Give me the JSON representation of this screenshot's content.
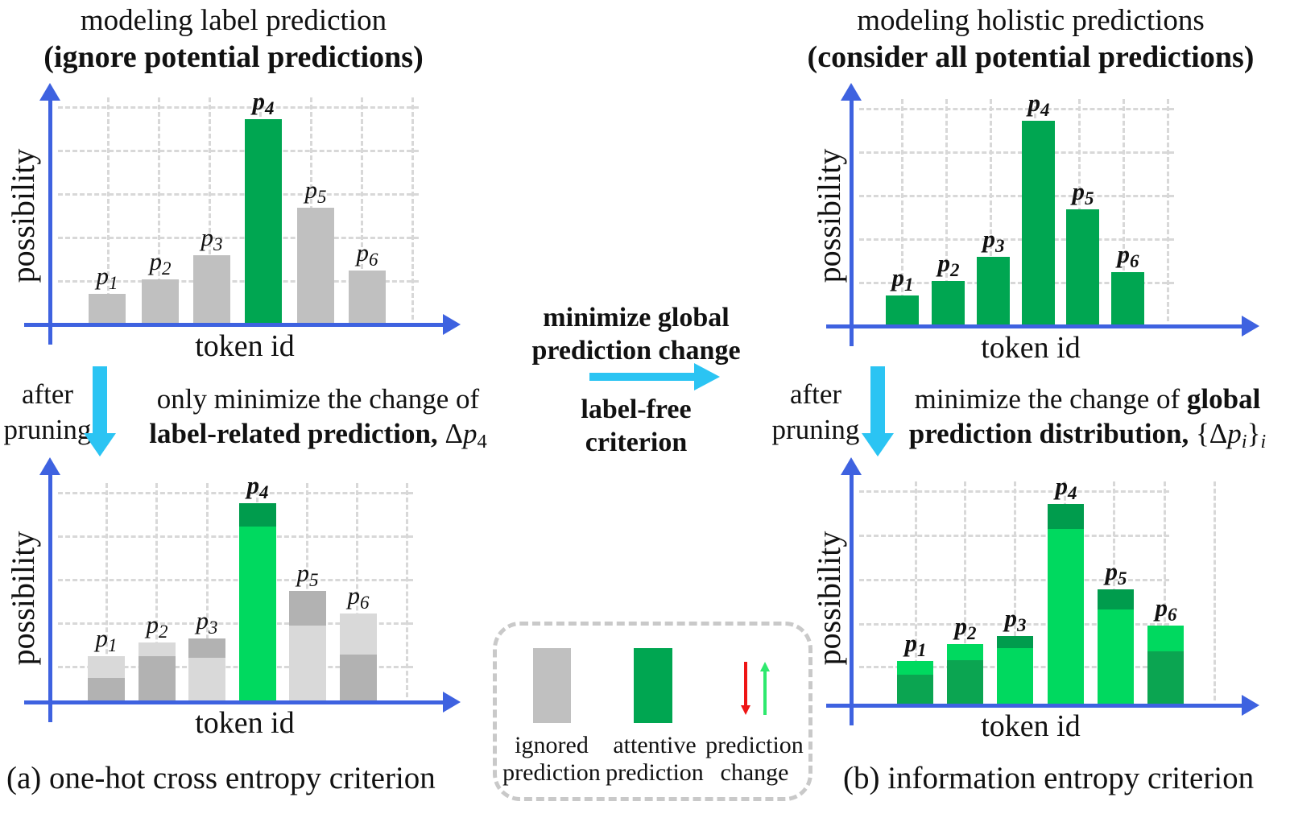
{
  "colors": {
    "axis_blue": "#3e62e0",
    "grid_gray": "#d8d8d8",
    "bar_gray": "#c0c0c0",
    "gray_light": "#d9d9d9",
    "gray_dark": "#b2b2b2",
    "green": "#00a651",
    "green_cap": "#009c4d",
    "green_bright": "#00d95f",
    "green_deep": "#0ba551",
    "arrow_red": "#ee1515",
    "arrow_green": "#2ee96e",
    "arrow_faint": "#98f0bc",
    "cyan": "#2bc4f3",
    "legend_border": "#c9c9c9"
  },
  "titles": {
    "top_left_line1": "modeling label prediction",
    "top_left_line2": "(ignore potential predictions)",
    "top_right_line1": "modeling holistic predictions",
    "top_right_line2": "(consider all potential predictions)"
  },
  "middle": {
    "flow_line1": "minimize global",
    "flow_line2": "prediction change",
    "flow_line3": "label-free",
    "flow_line4": "criterion",
    "after_left_line1": "after",
    "after_left_line2": "pruning",
    "after_right_line1": "after",
    "after_right_line2": "pruning",
    "note_a_line1": [
      {
        "t": "only minimize the change of",
        "s": "n"
      }
    ],
    "note_a_line2": [
      {
        "t": "label-related prediction,",
        "s": "b"
      },
      {
        "t": " Δ",
        "s": "n"
      },
      {
        "t": "p",
        "s": "i"
      },
      {
        "t": "4",
        "s": "sub"
      }
    ],
    "note_b_line1": [
      {
        "t": "minimize the change of ",
        "s": "n"
      },
      {
        "t": "global",
        "s": "b"
      }
    ],
    "note_b_line2": [
      {
        "t": "prediction distribution,",
        "s": "b"
      },
      {
        "t": " {Δ",
        "s": "n"
      },
      {
        "t": "p",
        "s": "i"
      },
      {
        "t": "i",
        "s": "isub"
      },
      {
        "t": "}",
        "s": "n"
      },
      {
        "t": "i",
        "s": "isub"
      }
    ]
  },
  "captions": {
    "a": "(a) one-hot cross entropy criterion",
    "b": "(b) information entropy criterion"
  },
  "legend": {
    "items": [
      {
        "swatch": "ignored-swatch",
        "line1": "ignored",
        "line2": "prediction"
      },
      {
        "swatch": "attentive-swatch",
        "line1": "attentive",
        "line2": "prediction"
      },
      {
        "swatch": "change-arrows",
        "line1": "prediction",
        "line2": "change"
      }
    ]
  },
  "chart_data": [
    {
      "id": "top-left",
      "type": "bar",
      "title": "modeling label prediction (ignore potential predictions)",
      "xlabel": "token id",
      "ylabel": "possibility",
      "ylim": [
        0,
        1
      ],
      "grid": true,
      "categories": [
        "p1",
        "p2",
        "p3",
        "p4",
        "p5",
        "p6"
      ],
      "values": [
        0.14,
        0.21,
        0.32,
        0.95,
        0.54,
        0.25
      ],
      "bars": [
        {
          "label_base": "p",
          "label_sub": "1",
          "bold": false,
          "value": 0.142,
          "color": "bar_gray"
        },
        {
          "label_base": "p",
          "label_sub": "2",
          "bold": false,
          "value": 0.209,
          "color": "bar_gray"
        },
        {
          "label_base": "p",
          "label_sub": "3",
          "bold": false,
          "value": 0.321,
          "color": "bar_gray"
        },
        {
          "label_base": "p",
          "label_sub": "4",
          "bold": true,
          "value": 0.952,
          "color": "green"
        },
        {
          "label_base": "p",
          "label_sub": "5",
          "bold": false,
          "value": 0.541,
          "color": "bar_gray"
        },
        {
          "label_base": "p",
          "label_sub": "6",
          "bold": false,
          "value": 0.25,
          "color": "bar_gray"
        }
      ]
    },
    {
      "id": "top-right",
      "type": "bar",
      "title": "modeling holistic predictions (consider all potential predictions)",
      "xlabel": "token id",
      "ylabel": "possibility",
      "ylim": [
        0,
        1
      ],
      "grid": true,
      "categories": [
        "p1",
        "p2",
        "p3",
        "p4",
        "p5",
        "p6"
      ],
      "values": [
        0.14,
        0.21,
        0.32,
        0.95,
        0.54,
        0.25
      ],
      "bars": [
        {
          "label_base": "p",
          "label_sub": "1",
          "bold": true,
          "value": 0.142,
          "color": "green"
        },
        {
          "label_base": "p",
          "label_sub": "2",
          "bold": true,
          "value": 0.209,
          "color": "green"
        },
        {
          "label_base": "p",
          "label_sub": "3",
          "bold": true,
          "value": 0.321,
          "color": "green"
        },
        {
          "label_base": "p",
          "label_sub": "4",
          "bold": true,
          "value": 0.952,
          "color": "green"
        },
        {
          "label_base": "p",
          "label_sub": "5",
          "bold": true,
          "value": 0.541,
          "color": "green"
        },
        {
          "label_base": "p",
          "label_sub": "6",
          "bold": true,
          "value": 0.25,
          "color": "green"
        }
      ]
    },
    {
      "id": "bottom-left",
      "type": "bar",
      "title": "after pruning: one-hot cross entropy criterion",
      "xlabel": "token id",
      "ylabel": "possibility",
      "ylim": [
        0,
        1
      ],
      "grid": true,
      "categories": [
        "p1",
        "p2",
        "p3",
        "p4",
        "p5",
        "p6"
      ],
      "values_before": [
        0.115,
        0.218,
        0.302,
        0.943,
        0.527,
        0.225
      ],
      "values_after": [
        0.218,
        0.283,
        0.21,
        0.832,
        0.363,
        0.42
      ],
      "bars": [
        {
          "label_base": "p",
          "label_sub": "1",
          "bold": false,
          "before": 0.115,
          "after": 0.218,
          "base_color": "gray_dark",
          "delta_color": "gray_light",
          "arrow": "up",
          "arrow_color": "arrow_green"
        },
        {
          "label_base": "p",
          "label_sub": "2",
          "bold": false,
          "before": 0.218,
          "after": 0.283,
          "base_color": "gray_dark",
          "delta_color": "gray_light",
          "arrow": "up",
          "arrow_color": "arrow_green"
        },
        {
          "label_base": "p",
          "label_sub": "3",
          "bold": false,
          "before": 0.302,
          "after": 0.21,
          "base_color": "gray_light",
          "delta_color": "gray_dark",
          "arrow": "down",
          "arrow_color": "arrow_red"
        },
        {
          "label_base": "p",
          "label_sub": "4",
          "bold": true,
          "before": 0.943,
          "after": 0.832,
          "base_color": "green_bright",
          "delta_color": "green_cap",
          "arrow": "down",
          "arrow_color": "arrow_red"
        },
        {
          "label_base": "p",
          "label_sub": "5",
          "bold": false,
          "before": 0.527,
          "after": 0.363,
          "base_color": "gray_light",
          "delta_color": "gray_dark",
          "arrow": "down",
          "arrow_color": "arrow_red"
        },
        {
          "label_base": "p",
          "label_sub": "6",
          "bold": false,
          "before": 0.225,
          "after": 0.42,
          "base_color": "gray_dark",
          "delta_color": "gray_light",
          "arrow": "up",
          "arrow_color": "arrow_green"
        }
      ]
    },
    {
      "id": "bottom-right",
      "type": "bar",
      "title": "after pruning: information entropy criterion",
      "xlabel": "token id",
      "ylabel": "possibility",
      "ylim": [
        0,
        1
      ],
      "grid": true,
      "categories": [
        "p1",
        "p2",
        "p3",
        "p4",
        "p5",
        "p6"
      ],
      "values_before": [
        0.145,
        0.215,
        0.33,
        0.955,
        0.55,
        0.256
      ],
      "values_after": [
        0.21,
        0.29,
        0.27,
        0.836,
        0.455,
        0.378
      ],
      "bars": [
        {
          "label_base": "p",
          "label_sub": "1",
          "bold": true,
          "before": 0.145,
          "after": 0.21,
          "base_color": "green_deep",
          "delta_color": "green_bright",
          "arrow": "up",
          "arrow_color": "arrow_faint"
        },
        {
          "label_base": "p",
          "label_sub": "2",
          "bold": true,
          "before": 0.215,
          "after": 0.29,
          "base_color": "green_deep",
          "delta_color": "green_bright",
          "arrow": "up",
          "arrow_color": "arrow_faint"
        },
        {
          "label_base": "p",
          "label_sub": "3",
          "bold": true,
          "before": 0.33,
          "after": 0.27,
          "base_color": "green_bright",
          "delta_color": "green_cap",
          "arrow": "down",
          "arrow_color": "arrow_red"
        },
        {
          "label_base": "p",
          "label_sub": "4",
          "bold": true,
          "before": 0.955,
          "after": 0.836,
          "base_color": "green_bright",
          "delta_color": "green_cap",
          "arrow": "down",
          "arrow_color": "arrow_red"
        },
        {
          "label_base": "p",
          "label_sub": "5",
          "bold": true,
          "before": 0.55,
          "after": 0.455,
          "base_color": "green_bright",
          "delta_color": "green_cap",
          "arrow": "down",
          "arrow_color": "arrow_red"
        },
        {
          "label_base": "p",
          "label_sub": "6",
          "bold": true,
          "before": 0.256,
          "after": 0.378,
          "base_color": "green_deep",
          "delta_color": "green_bright",
          "arrow": "up",
          "arrow_color": "arrow_faint"
        }
      ]
    }
  ]
}
